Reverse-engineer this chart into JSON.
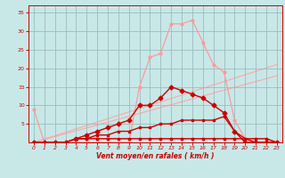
{
  "background_color": "#c8e8e8",
  "grid_color": "#9bbcbc",
  "xlabel": "Vent moyen/en rafales ( km/h )",
  "xlabel_color": "#cc0000",
  "tick_color": "#cc0000",
  "xlim": [
    -0.5,
    23.5
  ],
  "ylim": [
    0,
    37
  ],
  "xticks": [
    0,
    1,
    2,
    3,
    4,
    5,
    6,
    7,
    8,
    9,
    10,
    11,
    12,
    13,
    14,
    15,
    16,
    17,
    18,
    19,
    20,
    21,
    22,
    23
  ],
  "yticks": [
    5,
    10,
    15,
    20,
    25,
    30,
    35
  ],
  "line_pink_high": {
    "x": [
      0,
      1,
      2,
      3,
      4,
      5,
      6,
      7,
      8,
      9,
      10,
      11,
      12,
      13,
      14,
      15,
      16,
      17,
      18,
      19,
      20,
      21,
      22,
      23
    ],
    "y": [
      0,
      0,
      0,
      0,
      0,
      0,
      0,
      0,
      0,
      0,
      15,
      23,
      24,
      32,
      32,
      33,
      27,
      21,
      19,
      6,
      1,
      0,
      0,
      0
    ],
    "color": "#ff9999",
    "lw": 0.9,
    "marker": "o",
    "ms": 2.0
  },
  "line_pink_low": {
    "x": [
      0,
      1,
      2,
      3,
      4,
      5,
      6,
      7,
      8,
      9,
      10,
      11,
      12,
      13,
      14,
      15,
      16,
      17,
      18,
      19,
      20,
      21,
      22,
      23
    ],
    "y": [
      9,
      0,
      0,
      0,
      1,
      1,
      1,
      1,
      1,
      1,
      1,
      1,
      1,
      1,
      1,
      1,
      1,
      1,
      1,
      1,
      1,
      1,
      1,
      0
    ],
    "color": "#ff9999",
    "lw": 0.9,
    "marker": "o",
    "ms": 2.0
  },
  "line_diag1": {
    "x": [
      0,
      23
    ],
    "y": [
      0,
      21
    ],
    "color": "#ffaaaa",
    "lw": 0.9
  },
  "line_diag2": {
    "x": [
      0,
      23
    ],
    "y": [
      0,
      18
    ],
    "color": "#ffaaaa",
    "lw": 0.9
  },
  "line_dark_high": {
    "x": [
      0,
      1,
      2,
      3,
      4,
      5,
      6,
      7,
      8,
      9,
      10,
      11,
      12,
      13,
      14,
      15,
      16,
      17,
      18,
      19,
      20,
      21,
      22,
      23
    ],
    "y": [
      0,
      0,
      0,
      0,
      1,
      2,
      3,
      4,
      5,
      6,
      10,
      10,
      12,
      15,
      14,
      13,
      12,
      10,
      8,
      3,
      0,
      0,
      0,
      0
    ],
    "color": "#cc0000",
    "lw": 1.0,
    "marker": "D",
    "ms": 2.5
  },
  "line_dark_mid": {
    "x": [
      0,
      1,
      2,
      3,
      4,
      5,
      6,
      7,
      8,
      9,
      10,
      11,
      12,
      13,
      14,
      15,
      16,
      17,
      18,
      19,
      20,
      21,
      22,
      23
    ],
    "y": [
      0,
      0,
      0,
      0,
      1,
      1,
      2,
      2,
      3,
      3,
      4,
      4,
      5,
      5,
      6,
      6,
      6,
      6,
      7,
      3,
      1,
      0,
      0,
      0
    ],
    "color": "#cc0000",
    "lw": 1.0,
    "marker": "s",
    "ms": 2.0
  },
  "line_dark_low": {
    "x": [
      0,
      1,
      2,
      3,
      4,
      5,
      6,
      7,
      8,
      9,
      10,
      11,
      12,
      13,
      14,
      15,
      16,
      17,
      18,
      19,
      20,
      21,
      22,
      23
    ],
    "y": [
      0,
      0,
      0,
      0,
      1,
      1,
      1,
      1,
      1,
      1,
      1,
      1,
      1,
      1,
      1,
      1,
      1,
      1,
      1,
      1,
      1,
      1,
      1,
      0
    ],
    "color": "#cc0000",
    "lw": 1.0,
    "marker": "s",
    "ms": 2.0
  }
}
